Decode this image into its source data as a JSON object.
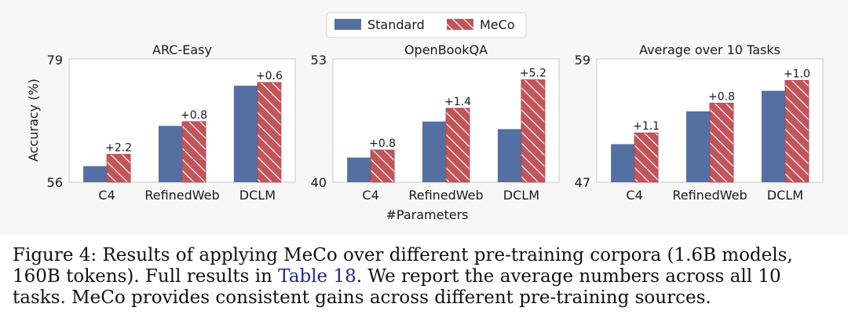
{
  "legend": {
    "items": [
      {
        "name": "Standard",
        "color": "#5470a3",
        "pattern": "solid"
      },
      {
        "name": "MeCo",
        "color": "#c1555a",
        "pattern": "hatched"
      }
    ]
  },
  "shared_xlabel": "#Parameters",
  "shared_ylabel": "Accuracy (%)",
  "chart_data": [
    {
      "type": "bar",
      "title": "ARC-Easy",
      "categories": [
        "C4",
        "RefinedWeb",
        "DCLM"
      ],
      "series": [
        {
          "name": "Standard",
          "values": [
            59.0,
            66.5,
            74.0
          ]
        },
        {
          "name": "MeCo",
          "values": [
            61.2,
            67.3,
            74.6
          ]
        }
      ],
      "annotations": [
        "+2.2",
        "+0.8",
        "+0.6"
      ],
      "ylim": [
        56,
        79
      ],
      "yticks": [
        "56",
        "79"
      ],
      "ylabel": "Accuracy (%)",
      "xlabel": ""
    },
    {
      "type": "bar",
      "title": "OpenBookQA",
      "categories": [
        "C4",
        "RefinedWeb",
        "DCLM"
      ],
      "series": [
        {
          "name": "Standard",
          "values": [
            42.6,
            46.4,
            45.6
          ]
        },
        {
          "name": "MeCo",
          "values": [
            43.4,
            47.8,
            50.8
          ]
        }
      ],
      "annotations": [
        "+0.8",
        "+1.4",
        "+5.2"
      ],
      "ylim": [
        40,
        53
      ],
      "yticks": [
        "40",
        "53"
      ],
      "ylabel": "",
      "xlabel": "#Parameters"
    },
    {
      "type": "bar",
      "title": "Average over 10 Tasks",
      "categories": [
        "C4",
        "RefinedWeb",
        "DCLM"
      ],
      "series": [
        {
          "name": "Standard",
          "values": [
            50.7,
            53.9,
            55.9
          ]
        },
        {
          "name": "MeCo",
          "values": [
            51.8,
            54.7,
            56.9
          ]
        }
      ],
      "annotations": [
        "+1.1",
        "+0.8",
        "+1.0"
      ],
      "ylim": [
        47,
        59
      ],
      "yticks": [
        "47",
        "59"
      ],
      "ylabel": "",
      "xlabel": ""
    }
  ],
  "caption": {
    "prefix": "Figure 4: Results of applying MeCo over different pre-training corpora (1.6B models, 160B tokens). Full results in ",
    "ref": "Table 18",
    "suffix": ". We report the average numbers across all 10 tasks. MeCo provides consistent gains across different pre-training sources."
  }
}
